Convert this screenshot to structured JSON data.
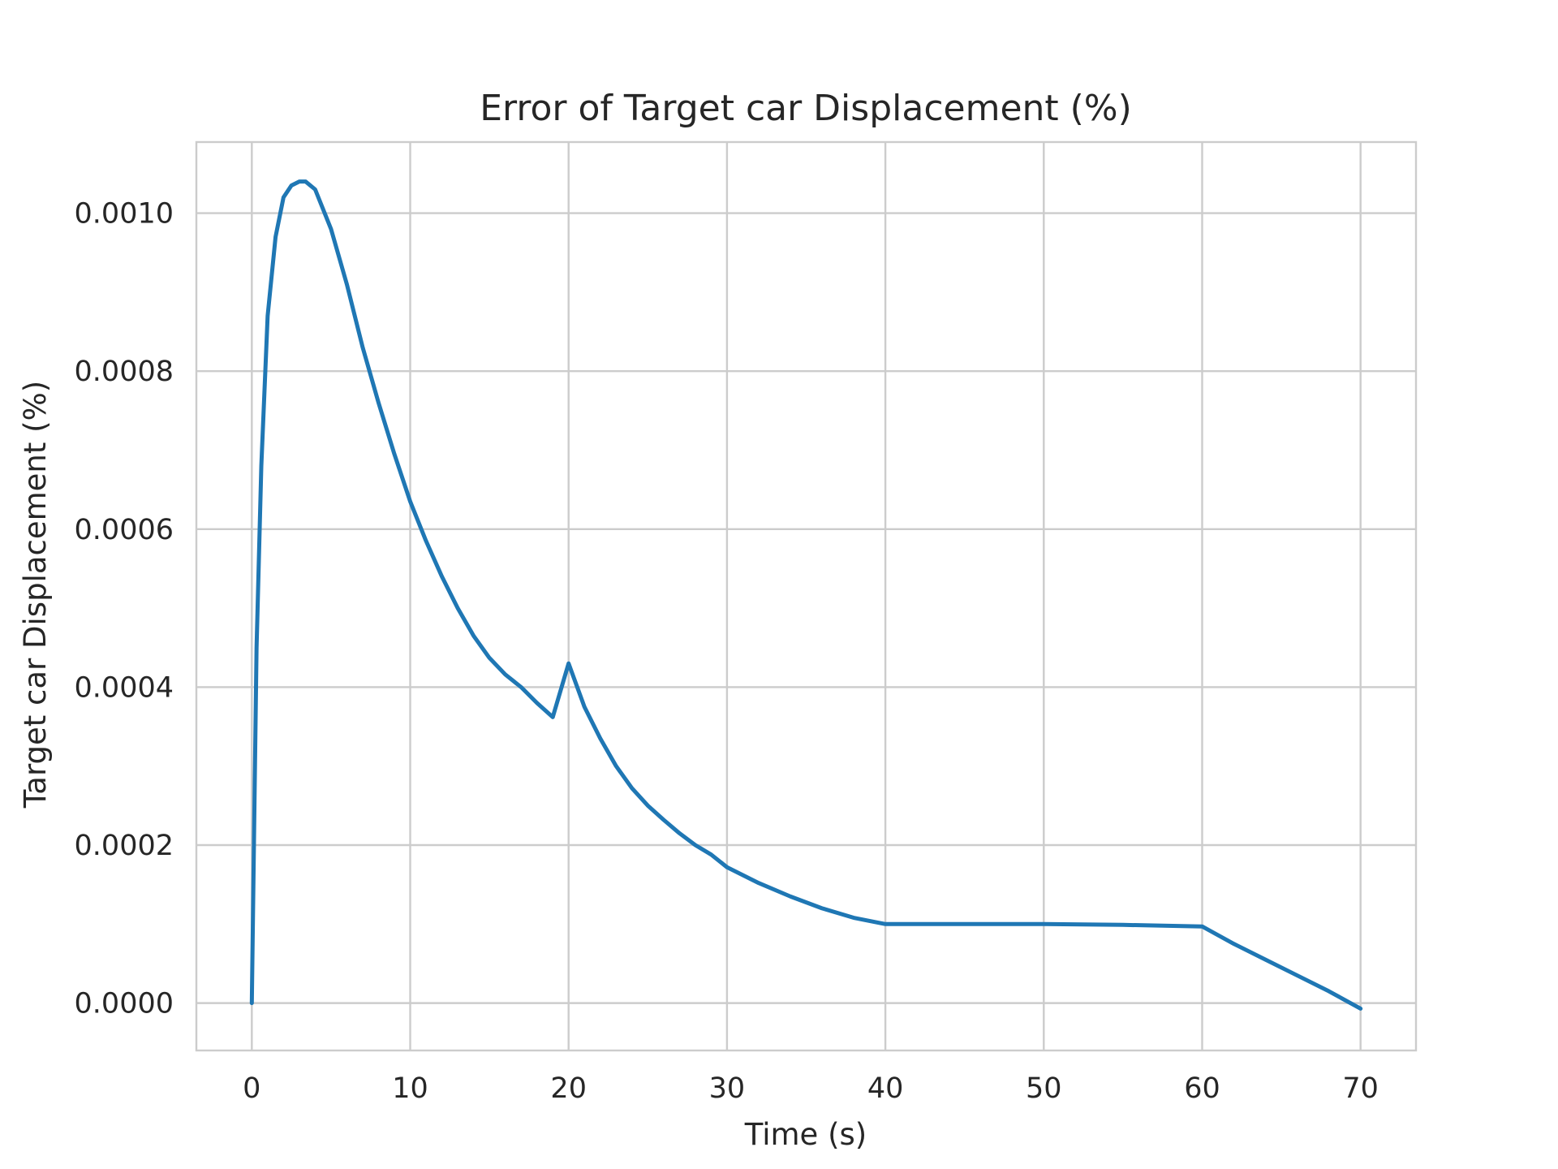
{
  "chart_data": {
    "type": "line",
    "title": "Error of Target car Displacement (%)",
    "xlabel": "Time (s)",
    "ylabel": "Target car Displacement (%)",
    "xlim": [
      -3.5,
      73.5
    ],
    "ylim": [
      -6e-05,
      0.00109
    ],
    "xticks": [
      0,
      10,
      20,
      30,
      40,
      50,
      60,
      70
    ],
    "xtick_labels": [
      "0",
      "10",
      "20",
      "30",
      "40",
      "50",
      "60",
      "70"
    ],
    "yticks": [
      0,
      0.0002,
      0.0004,
      0.0006,
      0.0008,
      0.001
    ],
    "ytick_labels": [
      "0.0000",
      "0.0002",
      "0.0004",
      "0.0006",
      "0.0008",
      "0.0010"
    ],
    "grid": true,
    "legend": false,
    "series": [
      {
        "color": "#1f77b4",
        "x": [
          0,
          0.3,
          0.6,
          1.0,
          1.5,
          2.0,
          2.5,
          3.0,
          3.4,
          4.0,
          5.0,
          6.0,
          7.0,
          8.0,
          9.0,
          10.0,
          11.0,
          12.0,
          13.0,
          14.0,
          15.0,
          16.0,
          17.0,
          18.0,
          19.0,
          20.0,
          21.0,
          22.0,
          23.0,
          24.0,
          25.0,
          26.0,
          27.0,
          28.0,
          29.0,
          30.0,
          32.0,
          34.0,
          36.0,
          38.0,
          40.0,
          45.0,
          50.0,
          55.0,
          60.0,
          62.0,
          64.0,
          66.0,
          68.0,
          70.0
        ],
        "y": [
          0.0,
          0.00045,
          0.00068,
          0.00087,
          0.00097,
          0.00102,
          0.001035,
          0.00104,
          0.00104,
          0.00103,
          0.00098,
          0.00091,
          0.00083,
          0.00076,
          0.000695,
          0.000635,
          0.000585,
          0.00054,
          0.0005,
          0.000465,
          0.000437,
          0.000416,
          0.0004,
          0.00038,
          0.000362,
          0.00043,
          0.000375,
          0.000335,
          0.0003,
          0.000272,
          0.00025,
          0.000232,
          0.000215,
          0.0002,
          0.000188,
          0.000172,
          0.000152,
          0.000135,
          0.00012,
          0.000108,
          0.0001,
          0.0001,
          0.0001,
          9.9e-05,
          9.7e-05,
          7.5e-05,
          5.5e-05,
          3.5e-05,
          1.5e-05,
          -7e-06
        ]
      }
    ]
  }
}
